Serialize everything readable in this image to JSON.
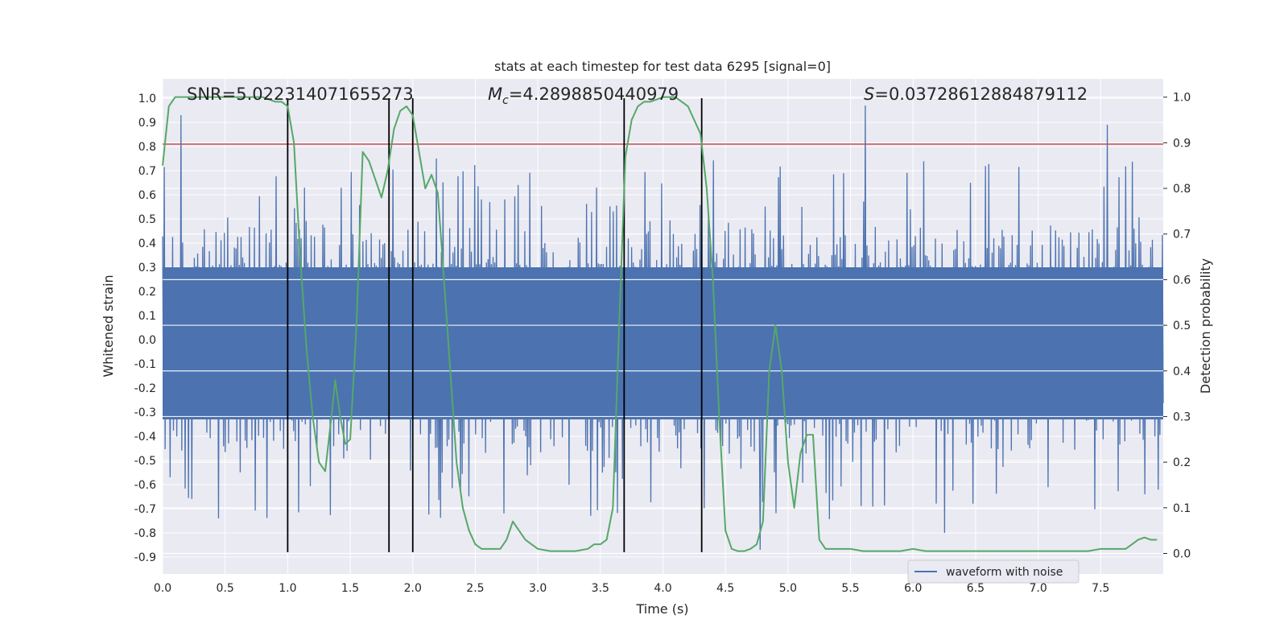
{
  "chart_data": {
    "type": "line",
    "title": "stats at each timestep for test data 6295 [signal=0]",
    "xlabel": "Time (s)",
    "ylabel": "Whitened strain",
    "ylabel_right": "Detection probability",
    "xlim": [
      0.0,
      8.0
    ],
    "ylim": [
      -0.97,
      1.08
    ],
    "ylim_right": [
      -0.045,
      1.04
    ],
    "x_ticks": [
      "0.0",
      "0.5",
      "1.0",
      "1.5",
      "2.0",
      "2.5",
      "3.0",
      "3.5",
      "4.0",
      "4.5",
      "5.0",
      "5.5",
      "6.0",
      "6.5",
      "7.0",
      "7.5"
    ],
    "y_ticks": [
      "1.0",
      "0.9",
      "0.8",
      "0.7",
      "0.6",
      "0.5",
      "0.4",
      "0.3",
      "0.2",
      "0.1",
      "0.0",
      "-0.1",
      "-0.2",
      "-0.3",
      "-0.4",
      "-0.5",
      "-0.6",
      "-0.7",
      "-0.8",
      "-0.9"
    ],
    "y_ticks_right": [
      "1.0",
      "0.9",
      "0.8",
      "0.7",
      "0.6",
      "0.5",
      "0.4",
      "0.3",
      "0.2",
      "0.1",
      "0.0"
    ],
    "annotations": {
      "snr": "SNR=5.022314071655273",
      "mc_symbol": "M",
      "mc_sub": "c",
      "mc_value": "=4.2898850440979",
      "s_symbol": "S",
      "s_value": "=0.03728612884879112"
    },
    "threshold": {
      "value": 0.81,
      "color": "#c44e52"
    },
    "vlines": [
      1.0,
      1.81,
      2.0,
      3.69,
      4.31
    ],
    "vline_ymin": -0.88,
    "legend": {
      "label": "waveform with noise",
      "position": "lower-right"
    },
    "grid": true,
    "colors": {
      "waveform": "#4c72b0",
      "probability": "#55a868",
      "threshold": "#c44e52",
      "vlines": "#000000",
      "axes_bg": "#eaeaf2",
      "grid": "#ffffff"
    },
    "waveform": {
      "name": "waveform with noise",
      "x_range": [
        0.0,
        8.0
      ],
      "n_samples": 1200,
      "core_envelope": [
        -0.33,
        0.3
      ],
      "spike_range": [
        -0.88,
        0.97
      ],
      "notable_peaks": [
        {
          "x": 0.15,
          "y": 0.93
        },
        {
          "x": 5.62,
          "y": 0.97
        },
        {
          "x": 7.55,
          "y": 0.89
        },
        {
          "x": 4.78,
          "y": -0.87
        },
        {
          "x": 6.25,
          "y": -0.8
        }
      ]
    },
    "series": [
      {
        "name": "",
        "axis": "right",
        "x": [
          0.0,
          0.05,
          0.1,
          0.2,
          0.3,
          0.4,
          0.5,
          0.6,
          0.7,
          0.8,
          0.9,
          0.95,
          1.0,
          1.05,
          1.1,
          1.15,
          1.2,
          1.25,
          1.3,
          1.35,
          1.38,
          1.42,
          1.46,
          1.5,
          1.55,
          1.6,
          1.65,
          1.7,
          1.75,
          1.8,
          1.85,
          1.9,
          1.95,
          2.0,
          2.05,
          2.1,
          2.15,
          2.2,
          2.25,
          2.3,
          2.35,
          2.4,
          2.45,
          2.5,
          2.55,
          2.6,
          2.65,
          2.7,
          2.75,
          2.8,
          2.85,
          2.9,
          2.95,
          3.0,
          3.1,
          3.2,
          3.3,
          3.4,
          3.45,
          3.5,
          3.55,
          3.6,
          3.65,
          3.7,
          3.75,
          3.8,
          3.85,
          3.9,
          4.0,
          4.1,
          4.2,
          4.25,
          4.3,
          4.35,
          4.4,
          4.45,
          4.5,
          4.55,
          4.6,
          4.65,
          4.7,
          4.75,
          4.8,
          4.85,
          4.9,
          4.95,
          5.0,
          5.05,
          5.1,
          5.15,
          5.2,
          5.25,
          5.3,
          5.4,
          5.5,
          5.6,
          5.7,
          5.8,
          5.9,
          6.0,
          6.1,
          6.2,
          6.3,
          6.4,
          6.5,
          6.6,
          6.7,
          6.8,
          6.9,
          7.0,
          7.1,
          7.2,
          7.3,
          7.4,
          7.5,
          7.6,
          7.7,
          7.75,
          7.8,
          7.85,
          7.9,
          7.95
        ],
        "values": [
          0.85,
          0.98,
          1.0,
          1.0,
          1.0,
          1.0,
          1.0,
          1.0,
          1.0,
          1.0,
          0.99,
          0.99,
          0.98,
          0.9,
          0.65,
          0.45,
          0.3,
          0.2,
          0.18,
          0.3,
          0.38,
          0.3,
          0.24,
          0.25,
          0.5,
          0.88,
          0.86,
          0.82,
          0.78,
          0.84,
          0.93,
          0.97,
          0.98,
          0.96,
          0.88,
          0.8,
          0.83,
          0.79,
          0.6,
          0.4,
          0.2,
          0.1,
          0.05,
          0.02,
          0.01,
          0.01,
          0.01,
          0.01,
          0.03,
          0.07,
          0.05,
          0.03,
          0.02,
          0.01,
          0.005,
          0.005,
          0.005,
          0.01,
          0.02,
          0.02,
          0.03,
          0.1,
          0.5,
          0.87,
          0.95,
          0.98,
          0.99,
          0.99,
          1.0,
          1.0,
          0.98,
          0.95,
          0.92,
          0.8,
          0.6,
          0.3,
          0.05,
          0.01,
          0.005,
          0.005,
          0.01,
          0.02,
          0.07,
          0.4,
          0.5,
          0.4,
          0.2,
          0.1,
          0.22,
          0.26,
          0.26,
          0.03,
          0.01,
          0.01,
          0.01,
          0.005,
          0.005,
          0.005,
          0.005,
          0.01,
          0.005,
          0.005,
          0.005,
          0.005,
          0.005,
          0.005,
          0.005,
          0.005,
          0.005,
          0.005,
          0.005,
          0.005,
          0.005,
          0.005,
          0.01,
          0.01,
          0.01,
          0.02,
          0.03,
          0.035,
          0.03,
          0.03
        ],
        "color": "#55a868"
      }
    ]
  }
}
